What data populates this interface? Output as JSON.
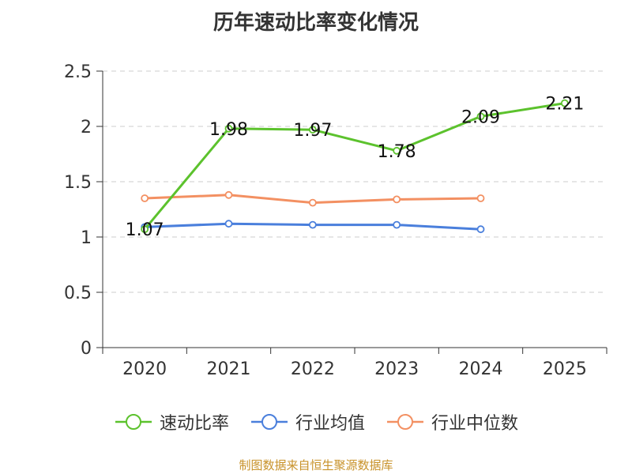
{
  "chart_data": {
    "type": "line",
    "title": "历年速动比率变化情况",
    "categories": [
      "2020",
      "2021",
      "2022",
      "2023",
      "2024",
      "2025"
    ],
    "ylim": [
      0,
      2.5
    ],
    "yticks": [
      "0",
      "0.5",
      "1",
      "1.5",
      "2",
      "2.5"
    ],
    "ytick_values": [
      0,
      0.5,
      1,
      1.5,
      2,
      2.5
    ],
    "grid": true,
    "legend_position": "bottom",
    "series": [
      {
        "name": "速动比率",
        "color": "#5cc22d",
        "values": [
          1.07,
          1.98,
          1.97,
          1.78,
          2.09,
          2.21
        ],
        "labels": [
          "1.07",
          "1.98",
          "1.97",
          "1.78",
          "2.09",
          "2.21"
        ]
      },
      {
        "name": "行业均值",
        "color": "#4a7fdc",
        "values": [
          1.09,
          1.12,
          1.11,
          1.11,
          1.07,
          null
        ]
      },
      {
        "name": "行业中位数",
        "color": "#f39062",
        "values": [
          1.35,
          1.38,
          1.31,
          1.34,
          1.35,
          null
        ]
      }
    ]
  },
  "footer": {
    "source": "制图数据来自恒生聚源数据库"
  }
}
